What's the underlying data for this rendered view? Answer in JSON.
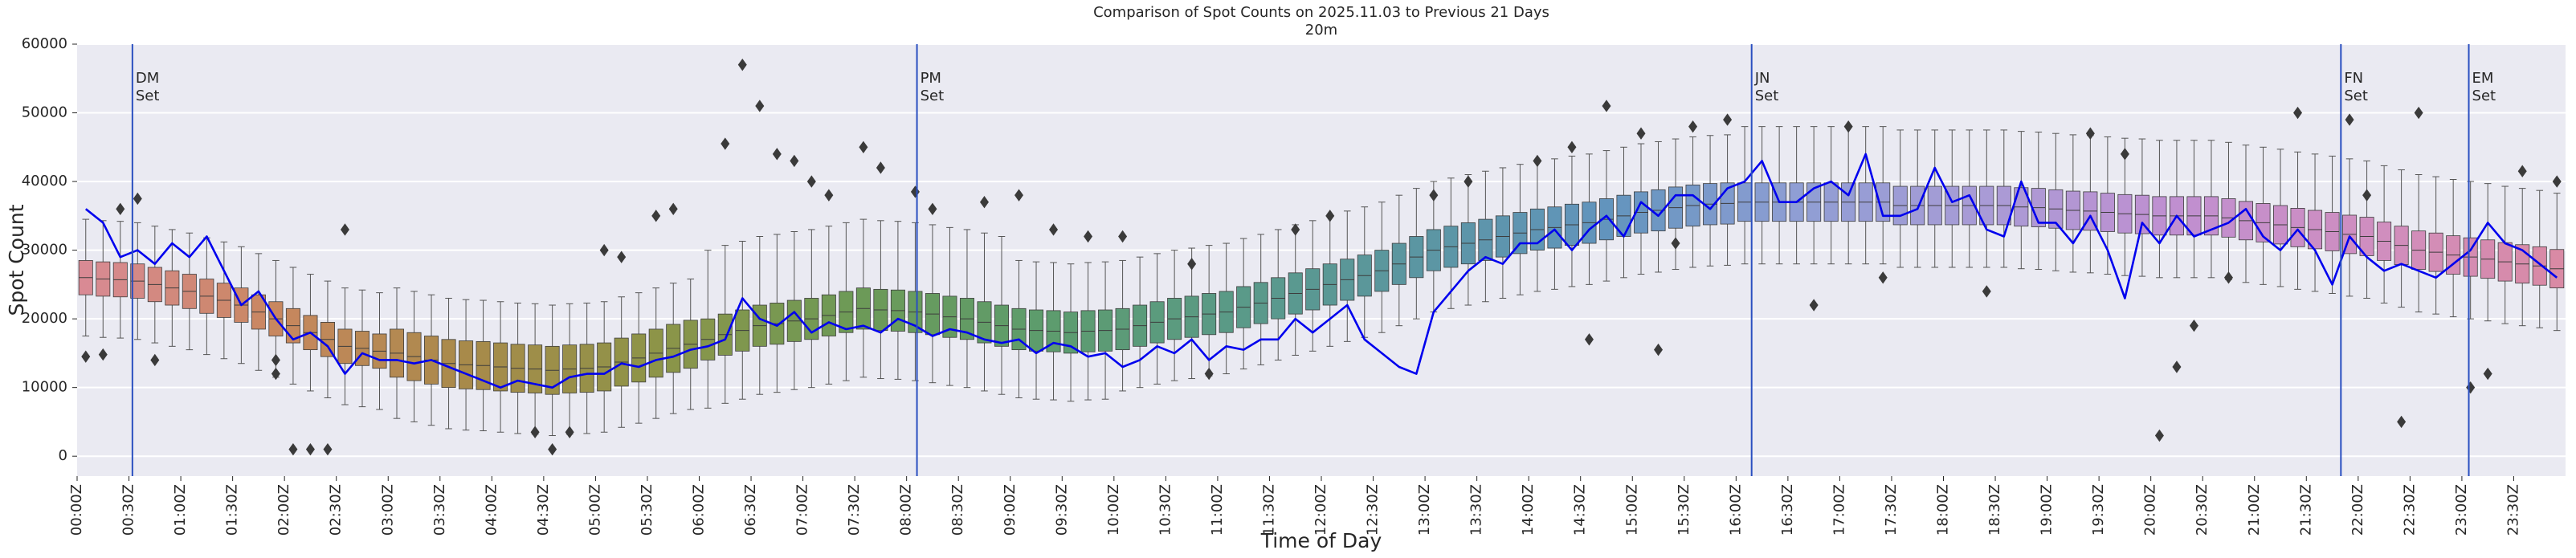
{
  "chart_data": {
    "type": "box",
    "title": "Comparison of Spot Counts on 2025.11.03 to Previous 21 Days",
    "subtitle": "20m",
    "xlabel": "Time of Day",
    "ylabel": "Spot Count",
    "ylim": [
      -2900,
      60000
    ],
    "yticks": [
      0,
      10000,
      20000,
      30000,
      40000,
      50000,
      60000
    ],
    "grid": true,
    "categories": [
      "00:00Z",
      null,
      null,
      "00:30Z",
      null,
      null,
      "01:00Z",
      null,
      null,
      "01:30Z",
      null,
      null,
      "02:00Z",
      null,
      null,
      "02:30Z",
      null,
      null,
      "03:00Z",
      null,
      null,
      "03:30Z",
      null,
      null,
      "04:00Z",
      null,
      null,
      "04:30Z",
      null,
      null,
      "05:00Z",
      null,
      null,
      "05:30Z",
      null,
      null,
      "06:00Z",
      null,
      null,
      "06:30Z",
      null,
      null,
      "07:00Z",
      null,
      null,
      "07:30Z",
      null,
      null,
      "08:00Z",
      null,
      null,
      "08:30Z",
      null,
      null,
      "09:00Z",
      null,
      null,
      "09:30Z",
      null,
      null,
      "10:00Z",
      null,
      null,
      "10:30Z",
      null,
      null,
      "11:00Z",
      null,
      null,
      "11:30Z",
      null,
      null,
      "12:00Z",
      null,
      null,
      "12:30Z",
      null,
      null,
      "13:00Z",
      null,
      null,
      "13:30Z",
      null,
      null,
      "14:00Z",
      null,
      null,
      "14:30Z",
      null,
      null,
      "15:00Z",
      null,
      null,
      "15:30Z",
      null,
      null,
      "16:00Z",
      null,
      null,
      "16:30Z",
      null,
      null,
      "17:00Z",
      null,
      null,
      "17:30Z",
      null,
      null,
      "18:00Z",
      null,
      null,
      "18:30Z",
      null,
      null,
      "19:00Z",
      null,
      null,
      "19:30Z",
      null,
      null,
      "20:00Z",
      null,
      null,
      "20:30Z",
      null,
      null,
      "21:00Z",
      null,
      null,
      "21:30Z",
      null,
      null,
      "22:00Z",
      null,
      null,
      "22:30Z",
      null,
      null,
      "23:00Z",
      null,
      null,
      "23:30Z",
      null,
      null
    ],
    "palette": [
      "#d98a94",
      "#c8875f",
      "#a88a4a",
      "#8d9448",
      "#6e9a56",
      "#5d9c6c",
      "#5a9a86",
      "#5b96a2",
      "#6294bd",
      "#8f9ed4",
      "#a99bd6",
      "#c08fd0",
      "#cf8ec0",
      "#d98aa5"
    ],
    "boxes": {
      "whislo": [
        17500,
        17300,
        17200,
        17000,
        16500,
        16000,
        15500,
        14800,
        14200,
        13500,
        12500,
        11500,
        10500,
        9500,
        8500,
        7500,
        7200,
        6800,
        5500,
        5000,
        4500,
        4000,
        3800,
        3700,
        3500,
        3300,
        3200,
        3000,
        3200,
        3300,
        3500,
        4200,
        4800,
        5500,
        6200,
        6800,
        7000,
        7700,
        8300,
        9000,
        9300,
        9700,
        10000,
        10500,
        11000,
        11500,
        11300,
        11200,
        11000,
        10700,
        10300,
        10000,
        9500,
        9000,
        8500,
        8300,
        8200,
        8000,
        8200,
        8300,
        9500,
        10000,
        10500,
        11000,
        11300,
        11700,
        12000,
        12700,
        13300,
        14000,
        14700,
        15300,
        16000,
        16700,
        17300,
        18000,
        19000,
        20000,
        21000,
        21500,
        22000,
        22500,
        23000,
        23500,
        24000,
        24300,
        24700,
        25000,
        25500,
        26000,
        26500,
        26800,
        27200,
        27500,
        27700,
        27800,
        28000,
        28000,
        28000,
        28000,
        28000,
        28000,
        28000,
        28000,
        28000,
        27500,
        27500,
        27500,
        27500,
        27500,
        27500,
        27500,
        27300,
        27200,
        27000,
        26800,
        26700,
        26500,
        26300,
        26200,
        26000,
        26000,
        26000,
        26000,
        25700,
        25300,
        25000,
        24700,
        24300,
        24000,
        23700,
        23300,
        23000,
        22300,
        21700,
        21000,
        20700,
        20300,
        20000,
        19700,
        19300,
        19000,
        18700,
        18300
      ],
      "q1": [
        23500,
        23300,
        23200,
        23000,
        22500,
        22000,
        21500,
        20800,
        20200,
        19500,
        18500,
        17500,
        16500,
        15500,
        14500,
        13500,
        13200,
        12800,
        11500,
        11000,
        10500,
        10000,
        9800,
        9700,
        9500,
        9300,
        9200,
        9000,
        9200,
        9300,
        9500,
        10200,
        10800,
        11500,
        12200,
        12800,
        14000,
        14700,
        15300,
        16000,
        16300,
        16700,
        17000,
        17500,
        18000,
        18500,
        18300,
        18200,
        18000,
        17700,
        17300,
        17000,
        16500,
        16000,
        15500,
        15300,
        15200,
        15000,
        15200,
        15300,
        15500,
        16000,
        16500,
        17000,
        17300,
        17700,
        18000,
        18700,
        19300,
        20000,
        20700,
        21300,
        22000,
        22700,
        23300,
        24000,
        25000,
        26000,
        27000,
        27500,
        28000,
        28500,
        29000,
        29500,
        30000,
        30300,
        30700,
        31000,
        31500,
        32000,
        32500,
        32800,
        33200,
        33500,
        33700,
        33800,
        34200,
        34200,
        34200,
        34200,
        34200,
        34200,
        34200,
        34200,
        34200,
        33700,
        33700,
        33700,
        33700,
        33700,
        33700,
        33700,
        33500,
        33400,
        33200,
        33000,
        32900,
        32700,
        32500,
        32400,
        32200,
        32200,
        32200,
        32200,
        31900,
        31500,
        31200,
        30900,
        30500,
        30200,
        29900,
        29500,
        29200,
        28500,
        27900,
        27200,
        26900,
        26500,
        26200,
        25900,
        25500,
        25200,
        24900,
        24500
      ],
      "median": [
        26000,
        25800,
        25700,
        25500,
        25000,
        24500,
        24000,
        23300,
        22700,
        22000,
        21000,
        20000,
        19000,
        18000,
        17000,
        16000,
        15700,
        15300,
        15000,
        14500,
        14000,
        13500,
        13300,
        13200,
        13000,
        12800,
        12700,
        12500,
        12700,
        12800,
        13000,
        13700,
        14300,
        15000,
        15700,
        16300,
        17000,
        17700,
        18300,
        19000,
        19300,
        19700,
        20000,
        20500,
        21000,
        21500,
        21300,
        21200,
        21000,
        20700,
        20300,
        20000,
        19500,
        19000,
        18500,
        18300,
        18200,
        18000,
        18200,
        18300,
        18500,
        19000,
        19500,
        20000,
        20300,
        20700,
        21000,
        21700,
        22300,
        23000,
        23700,
        24300,
        25000,
        25700,
        26300,
        27000,
        28000,
        29000,
        30000,
        30500,
        31000,
        31500,
        32000,
        32500,
        33000,
        33300,
        33700,
        34000,
        34500,
        35000,
        35500,
        35800,
        36200,
        36500,
        36700,
        36800,
        37000,
        37000,
        37000,
        37000,
        37000,
        37000,
        37000,
        37000,
        37000,
        36500,
        36500,
        36500,
        36500,
        36500,
        36500,
        36500,
        36300,
        36200,
        36000,
        35800,
        35700,
        35500,
        35300,
        35200,
        35000,
        35000,
        35000,
        35000,
        34700,
        34300,
        34000,
        33700,
        33300,
        33000,
        32700,
        32300,
        32000,
        31300,
        30700,
        30000,
        29700,
        29300,
        29000,
        28700,
        28300,
        28000,
        27700,
        27300
      ],
      "q3": [
        28500,
        28300,
        28200,
        28000,
        27500,
        27000,
        26500,
        25800,
        25200,
        24500,
        23500,
        22500,
        21500,
        20500,
        19500,
        18500,
        18200,
        17800,
        18500,
        18000,
        17500,
        17000,
        16800,
        16700,
        16500,
        16300,
        16200,
        16000,
        16200,
        16300,
        16500,
        17200,
        17800,
        18500,
        19200,
        19800,
        20000,
        20700,
        21300,
        22000,
        22300,
        22700,
        23000,
        23500,
        24000,
        24500,
        24300,
        24200,
        24000,
        23700,
        23300,
        23000,
        22500,
        22000,
        21500,
        21300,
        21200,
        21000,
        21200,
        21300,
        21500,
        22000,
        22500,
        23000,
        23300,
        23700,
        24000,
        24700,
        25300,
        26000,
        26700,
        27300,
        28000,
        28700,
        29300,
        30000,
        31000,
        32000,
        33000,
        33500,
        34000,
        34500,
        35000,
        35500,
        36000,
        36300,
        36700,
        37000,
        37500,
        38000,
        38500,
        38800,
        39200,
        39500,
        39700,
        39800,
        39800,
        39800,
        39800,
        39800,
        39800,
        39800,
        39800,
        39800,
        39800,
        39300,
        39300,
        39300,
        39300,
        39300,
        39300,
        39300,
        39100,
        39000,
        38800,
        38600,
        38500,
        38300,
        38100,
        38000,
        37800,
        37800,
        37800,
        37800,
        37500,
        37100,
        36800,
        36500,
        36100,
        35800,
        35500,
        35100,
        34800,
        34100,
        33500,
        32800,
        32500,
        32100,
        31800,
        31500,
        31100,
        30800,
        30500,
        30100
      ],
      "whishi": [
        34500,
        34300,
        34200,
        34000,
        33500,
        33000,
        32500,
        31800,
        31200,
        30500,
        29500,
        28500,
        27500,
        26500,
        25500,
        24500,
        24200,
        23800,
        24500,
        24000,
        23500,
        23000,
        22800,
        22700,
        22500,
        22300,
        22200,
        22000,
        22200,
        22300,
        22500,
        23200,
        23800,
        24500,
        25200,
        25800,
        30000,
        30700,
        31300,
        32000,
        32300,
        32700,
        33000,
        33500,
        34000,
        34500,
        34300,
        34200,
        34000,
        33700,
        33300,
        33000,
        32500,
        32000,
        28500,
        28300,
        28200,
        28000,
        28200,
        28300,
        28500,
        29000,
        29500,
        30000,
        30300,
        30700,
        31000,
        31700,
        32300,
        33000,
        33700,
        34300,
        35000,
        35700,
        36300,
        37000,
        38000,
        39000,
        40000,
        40500,
        41000,
        41500,
        42000,
        42500,
        43000,
        43300,
        43700,
        44000,
        44500,
        45000,
        45500,
        45800,
        46200,
        46500,
        46700,
        46800,
        48000,
        48000,
        48000,
        48000,
        48000,
        48000,
        48000,
        48000,
        48000,
        47500,
        47500,
        47500,
        47500,
        47500,
        47500,
        47500,
        47300,
        47200,
        47000,
        46800,
        46700,
        46500,
        46300,
        46200,
        46000,
        46000,
        46000,
        46000,
        45700,
        45300,
        45000,
        44700,
        44300,
        44000,
        43700,
        43300,
        43000,
        42300,
        41700,
        41000,
        40700,
        40300,
        40000,
        39700,
        39300,
        39000,
        38700,
        38300
      ]
    },
    "outliers": [
      [
        0,
        14500
      ],
      [
        1,
        14800
      ],
      [
        2,
        36000
      ],
      [
        3,
        37500
      ],
      [
        4,
        14000
      ],
      [
        11,
        12000
      ],
      [
        11,
        14000
      ],
      [
        12,
        1000
      ],
      [
        13,
        1000
      ],
      [
        14,
        1000
      ],
      [
        15,
        33000
      ],
      [
        26,
        3500
      ],
      [
        27,
        1000
      ],
      [
        28,
        3500
      ],
      [
        30,
        30000
      ],
      [
        31,
        29000
      ],
      [
        33,
        35000
      ],
      [
        34,
        36000
      ],
      [
        37,
        45500
      ],
      [
        38,
        57000
      ],
      [
        39,
        51000
      ],
      [
        40,
        44000
      ],
      [
        41,
        43000
      ],
      [
        42,
        40000
      ],
      [
        43,
        38000
      ],
      [
        45,
        45000
      ],
      [
        46,
        42000
      ],
      [
        48,
        38500
      ],
      [
        49,
        36000
      ],
      [
        52,
        37000
      ],
      [
        54,
        38000
      ],
      [
        56,
        33000
      ],
      [
        58,
        32000
      ],
      [
        60,
        32000
      ],
      [
        64,
        28000
      ],
      [
        65,
        12000
      ],
      [
        70,
        33000
      ],
      [
        72,
        35000
      ],
      [
        78,
        38000
      ],
      [
        80,
        40000
      ],
      [
        84,
        43000
      ],
      [
        86,
        45000
      ],
      [
        87,
        17000
      ],
      [
        88,
        51000
      ],
      [
        90,
        47000
      ],
      [
        91,
        15500
      ],
      [
        92,
        31000
      ],
      [
        93,
        48000
      ],
      [
        95,
        49000
      ],
      [
        100,
        22000
      ],
      [
        102,
        48000
      ],
      [
        104,
        26000
      ],
      [
        110,
        24000
      ],
      [
        116,
        47000
      ],
      [
        118,
        44000
      ],
      [
        120,
        3000
      ],
      [
        121,
        13000
      ],
      [
        122,
        19000
      ],
      [
        124,
        26000
      ],
      [
        128,
        50000
      ],
      [
        131,
        49000
      ],
      [
        132,
        38000
      ],
      [
        134,
        5000
      ],
      [
        135,
        50000
      ],
      [
        138,
        10000
      ],
      [
        139,
        12000
      ],
      [
        141,
        41500
      ],
      [
        143,
        40000
      ]
    ],
    "line": {
      "color": "#0000ee",
      "values": [
        36000,
        34000,
        29000,
        30000,
        28000,
        31000,
        29000,
        32000,
        27000,
        22000,
        24000,
        20000,
        17000,
        18000,
        16000,
        12000,
        15000,
        14000,
        14000,
        13500,
        14000,
        13000,
        12000,
        11000,
        10000,
        11000,
        10500,
        10000,
        11500,
        12000,
        12000,
        13500,
        13000,
        14000,
        14500,
        15500,
        16000,
        17000,
        23000,
        20000,
        19000,
        21000,
        18000,
        19500,
        18500,
        19000,
        18000,
        20000,
        19000,
        17500,
        18500,
        18000,
        17000,
        16500,
        17000,
        15000,
        16500,
        16000,
        14500,
        15000,
        13000,
        14000,
        16000,
        15000,
        17000,
        14000,
        16000,
        15500,
        17000,
        17000,
        20000,
        18000,
        20000,
        22000,
        17000,
        15000,
        13000,
        12000,
        21000,
        24000,
        27000,
        29000,
        28000,
        31000,
        31000,
        33000,
        30000,
        33000,
        35000,
        32000,
        37000,
        35000,
        38000,
        38000,
        36000,
        39000,
        40000,
        43000,
        37000,
        37000,
        39000,
        40000,
        38000,
        44000,
        35000,
        35000,
        36000,
        42000,
        37000,
        38000,
        33000,
        32000,
        40000,
        34000,
        34000,
        31000,
        35000,
        30000,
        23000,
        34000,
        31000,
        35000,
        32000,
        33000,
        34000,
        36000,
        32000,
        30000,
        33000,
        30000,
        25000,
        32000,
        29000,
        27000,
        28000,
        27000,
        26000,
        28000,
        30000,
        34000,
        31000,
        30000,
        28000,
        26000
      ]
    },
    "vlines": [
      {
        "position": 2.7,
        "label": [
          "DM",
          "Set"
        ],
        "color": "#2a4fc0"
      },
      {
        "position": 48.1,
        "label": [
          "PM",
          "Set"
        ],
        "color": "#2a4fc0"
      },
      {
        "position": 96.4,
        "label": [
          "JN",
          "Set"
        ],
        "color": "#2a4fc0"
      },
      {
        "position": 130.5,
        "label": [
          "FN",
          "Set"
        ],
        "color": "#2a4fc0"
      },
      {
        "position": 137.9,
        "label": [
          "EM",
          "Set"
        ],
        "color": "#2a4fc0"
      }
    ]
  }
}
